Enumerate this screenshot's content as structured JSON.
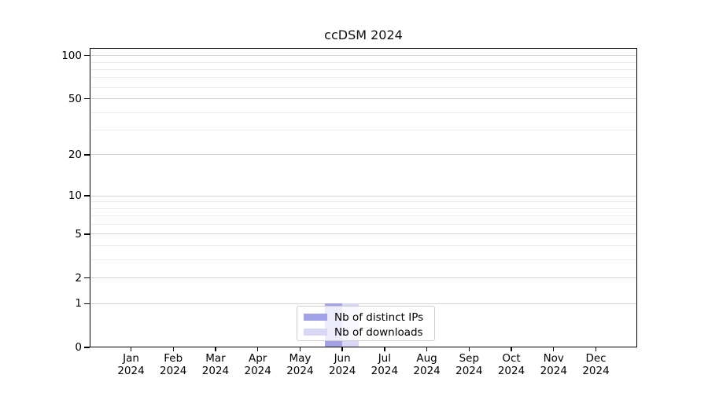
{
  "figure": {
    "title": "ccDSM 2024"
  },
  "colors": {
    "background": "#ffffff",
    "axis": "#000000",
    "grid_major": "#d2d2d2",
    "grid_minor": "#ededed",
    "legend_border": "#cccccc",
    "distinct_ips": "#a2a2e8",
    "downloads": "#d8d8f6"
  },
  "chart_data": {
    "type": "bar",
    "title": "ccDSM 2024",
    "categories": [
      "Jan",
      "Feb",
      "Mar",
      "Apr",
      "May",
      "Jun",
      "Jul",
      "Aug",
      "Sep",
      "Oct",
      "Nov",
      "Dec"
    ],
    "x_tick_second_line": "2024",
    "series": [
      {
        "name": "Nb of distinct IPs",
        "color": "#a2a2e8",
        "values": [
          0,
          0,
          0,
          0,
          0,
          1,
          0,
          0,
          0,
          0,
          0,
          0
        ]
      },
      {
        "name": "Nb of downloads",
        "color": "#d8d8f6",
        "values": [
          0,
          0,
          0,
          0,
          0,
          1,
          0,
          0,
          0,
          0,
          0,
          0
        ]
      }
    ],
    "xlabel": "",
    "ylabel": "",
    "yscale": "log1p",
    "ylim": [
      0,
      113
    ],
    "yticks": [
      0,
      1,
      2,
      5,
      10,
      20,
      50,
      100
    ],
    "yticks_minor": [
      3,
      4,
      6,
      7,
      8,
      9,
      30,
      40,
      60,
      70,
      80,
      90
    ],
    "grid": "horizontal major+minor",
    "legend_position": "lower center (inside axes)"
  }
}
